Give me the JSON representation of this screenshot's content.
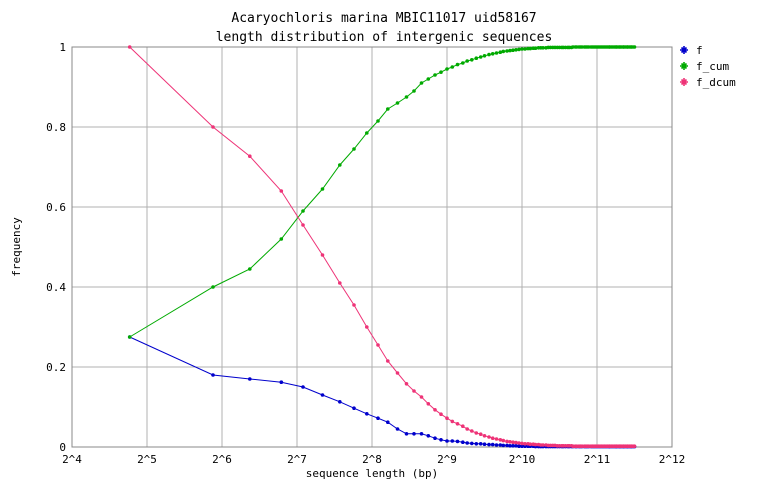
{
  "chart_data": {
    "type": "line",
    "title": "Acaryochloris marina MBIC11017 uid58167",
    "subtitle": "length distribution of intergenic sequences",
    "xlabel": "sequence length (bp)",
    "ylabel": "frequency",
    "x_scale": "log2",
    "xlim_log2": [
      4,
      12
    ],
    "ylim": [
      0,
      1
    ],
    "x_ticks": [
      "2^4",
      "2^5",
      "2^6",
      "2^7",
      "2^8",
      "2^9",
      "2^10",
      "2^11",
      "2^12"
    ],
    "y_ticks": [
      "0",
      "0.2",
      "0.4",
      "0.6",
      "0.8",
      "1"
    ],
    "grid": true,
    "legend_position": "right",
    "colors": {
      "f": "#0000cc",
      "f_cum": "#00aa00",
      "f_dcum": "#ee3377",
      "grid": "#b0b0b0"
    },
    "x_log2": [
      4.77,
      5.88,
      6.37,
      6.79,
      7.08,
      7.34,
      7.57,
      7.76,
      7.93,
      8.08,
      8.21,
      8.34,
      8.46,
      8.56,
      8.66,
      8.75,
      8.84,
      8.92,
      9.0,
      9.07,
      9.14,
      9.21,
      9.27,
      9.33,
      9.39,
      9.45,
      9.5,
      9.56,
      9.61,
      9.66,
      9.71,
      9.75,
      9.8,
      9.84,
      9.88,
      9.92,
      9.96,
      10.0,
      10.04,
      10.08,
      10.11,
      10.15,
      10.18,
      10.22,
      10.25,
      10.28,
      10.32,
      10.35,
      10.38,
      10.41,
      10.44,
      10.47,
      10.5,
      10.53,
      10.55,
      10.58,
      10.61,
      10.63,
      10.66,
      10.68,
      10.71,
      10.73,
      10.76,
      10.78,
      10.8,
      10.83,
      10.85,
      10.87,
      10.89,
      10.92,
      10.94,
      10.96,
      10.98,
      11.0,
      11.02,
      11.04,
      11.06,
      11.08,
      11.1,
      11.12,
      11.14,
      11.16,
      11.17,
      11.19,
      11.21,
      11.23,
      11.25,
      11.26,
      11.28,
      11.3,
      11.31,
      11.33,
      11.35,
      11.36,
      11.38,
      11.4,
      11.41,
      11.43,
      11.45,
      11.46,
      11.48,
      11.5
    ],
    "series": [
      {
        "name": "f",
        "values": [
          0.275,
          0.18,
          0.17,
          0.162,
          0.15,
          0.13,
          0.113,
          0.097,
          0.083,
          0.072,
          0.062,
          0.045,
          0.033,
          0.033,
          0.033,
          0.028,
          0.022,
          0.018,
          0.015,
          0.015,
          0.014,
          0.012,
          0.01,
          0.009,
          0.008,
          0.008,
          0.007,
          0.006,
          0.006,
          0.005,
          0.005,
          0.004,
          0.004,
          0.003,
          0.003,
          0.003,
          0.002,
          0.002,
          0.002,
          0.002,
          0.002,
          0.002,
          0.001,
          0.001,
          0.001,
          0.001,
          0.001,
          0.001,
          0.001,
          0.001,
          0.001,
          0.001,
          0.001,
          0.001,
          0.001,
          0.001,
          0.001,
          0.001,
          0.001,
          0.001,
          0.001,
          0.001,
          0.001,
          0.001,
          0.001,
          0.001,
          0.001,
          0.001,
          0.001,
          0.001,
          0.001,
          0.001,
          0.001,
          0.001,
          0.001,
          0.001,
          0.001,
          0.001,
          0.001,
          0.001,
          0.001,
          0.001,
          0.001,
          0.001,
          0.001,
          0.001,
          0.001,
          0.001,
          0.001,
          0.001,
          0.001,
          0.001,
          0.001,
          0.001,
          0.001,
          0.001,
          0.001,
          0.001,
          0.001,
          0.001,
          0.001,
          0.001
        ]
      },
      {
        "name": "f_cum",
        "values": [
          0.275,
          0.4,
          0.445,
          0.52,
          0.59,
          0.645,
          0.705,
          0.745,
          0.785,
          0.815,
          0.845,
          0.86,
          0.875,
          0.89,
          0.91,
          0.92,
          0.93,
          0.937,
          0.945,
          0.95,
          0.956,
          0.96,
          0.965,
          0.968,
          0.972,
          0.975,
          0.978,
          0.981,
          0.983,
          0.985,
          0.987,
          0.989,
          0.99,
          0.991,
          0.992,
          0.993,
          0.994,
          0.995,
          0.995,
          0.996,
          0.996,
          0.997,
          0.997,
          0.998,
          0.998,
          0.998,
          0.998,
          0.999,
          0.999,
          0.999,
          0.999,
          0.999,
          0.999,
          0.999,
          0.999,
          0.999,
          0.999,
          0.999,
          0.999,
          1,
          1,
          1,
          1,
          1,
          1,
          1,
          1,
          1,
          1,
          1,
          1,
          1,
          1,
          1,
          1,
          1,
          1,
          1,
          1,
          1,
          1,
          1,
          1,
          1,
          1,
          1,
          1,
          1,
          1,
          1,
          1,
          1,
          1,
          1,
          1,
          1,
          1,
          1,
          1,
          1,
          1,
          1
        ]
      },
      {
        "name": "f_dcum",
        "values": [
          1,
          0.8,
          0.727,
          0.64,
          0.555,
          0.48,
          0.41,
          0.355,
          0.3,
          0.255,
          0.215,
          0.185,
          0.158,
          0.14,
          0.125,
          0.108,
          0.093,
          0.082,
          0.072,
          0.064,
          0.058,
          0.052,
          0.045,
          0.04,
          0.035,
          0.032,
          0.028,
          0.025,
          0.022,
          0.02,
          0.018,
          0.016,
          0.014,
          0.013,
          0.012,
          0.011,
          0.01,
          0.009,
          0.008,
          0.008,
          0.007,
          0.007,
          0.006,
          0.006,
          0.005,
          0.005,
          0.005,
          0.004,
          0.004,
          0.004,
          0.004,
          0.003,
          0.003,
          0.003,
          0.003,
          0.003,
          0.003,
          0.003,
          0.003,
          0.002,
          0.002,
          0.002,
          0.002,
          0.002,
          0.002,
          0.002,
          0.002,
          0.002,
          0.002,
          0.002,
          0.002,
          0.002,
          0.002,
          0.002,
          0.002,
          0.002,
          0.002,
          0.002,
          0.002,
          0.002,
          0.002,
          0.002,
          0.002,
          0.002,
          0.002,
          0.002,
          0.002,
          0.002,
          0.002,
          0.002,
          0.002,
          0.002,
          0.002,
          0.002,
          0.002,
          0.002,
          0.002,
          0.002,
          0.002,
          0.002,
          0.002,
          0.002
        ]
      }
    ]
  }
}
